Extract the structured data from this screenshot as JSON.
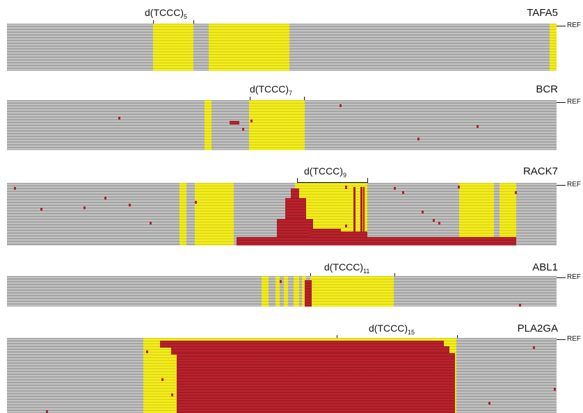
{
  "ref_label": "REF",
  "panels": [
    {
      "gene": "TAFA5",
      "motif_prefix": "d(TCCC)",
      "motif_repeat": "5"
    },
    {
      "gene": "BCR",
      "motif_prefix": "d(TCCC)",
      "motif_repeat": "7"
    },
    {
      "gene": "RACK7",
      "motif_prefix": "d(TCCC)",
      "motif_repeat": "9"
    },
    {
      "gene": "ABL1",
      "motif_prefix": "d(TCCC)",
      "motif_repeat": "11"
    },
    {
      "gene": "PLA2GA",
      "motif_prefix": "d(TCCC)",
      "motif_repeat": "15"
    }
  ],
  "colors": {
    "read_gray": "#bcbcbc",
    "motif_yellow": "#f2ec1d",
    "mismatch_red": "#b8222c"
  }
}
